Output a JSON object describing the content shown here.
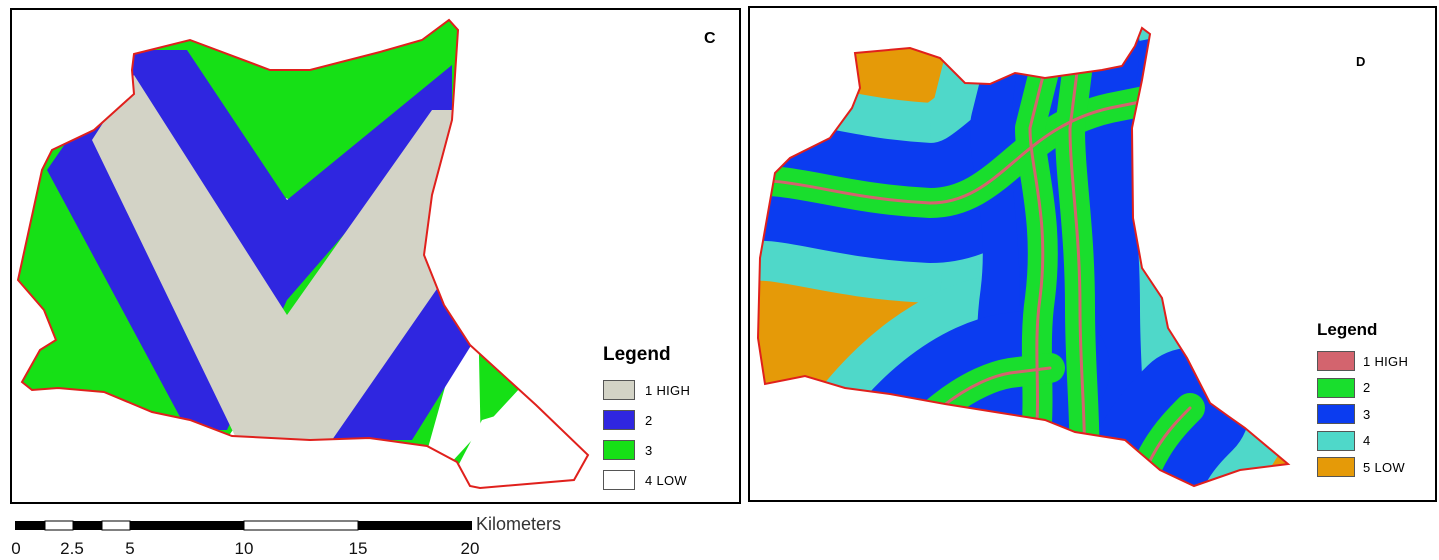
{
  "panels": [
    {
      "label": "C",
      "legend_title": "Legend",
      "classes": [
        {
          "label": "1  HIGH",
          "color": "#d3d3c6"
        },
        {
          "label": "2",
          "color": "#2f26e0"
        },
        {
          "label": "3",
          "color": "#16e016"
        },
        {
          "label": "4  LOW",
          "color": "#ffffff"
        }
      ]
    },
    {
      "label": "D",
      "legend_title": "Legend",
      "classes": [
        {
          "label": "1  HIGH",
          "color": "#d3646e"
        },
        {
          "label": "2",
          "color": "#19de2d"
        },
        {
          "label": "3",
          "color": "#0b3cf0"
        },
        {
          "label": "4",
          "color": "#4fd8c9"
        },
        {
          "label": "5  LOW",
          "color": "#e59a08"
        }
      ]
    }
  ],
  "boundary_color": "#e0201c",
  "scale_bar": {
    "unit": "Kilometers",
    "ticks": [
      "0",
      "2.5",
      "5",
      "10",
      "15",
      "20"
    ]
  }
}
